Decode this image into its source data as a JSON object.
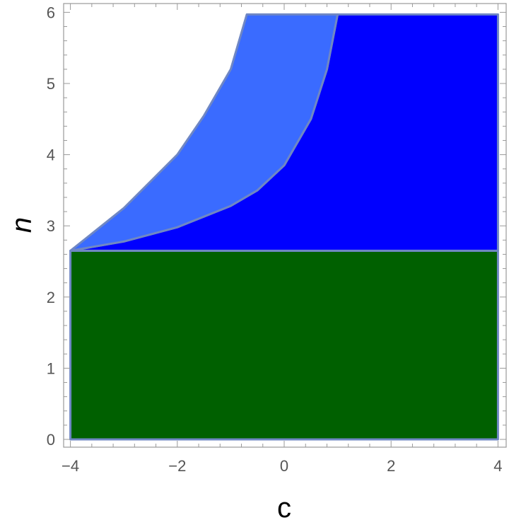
{
  "chart_data": {
    "type": "area",
    "xlabel": "c",
    "ylabel": "n",
    "xlim": [
      -4,
      4
    ],
    "ylim": [
      0,
      6
    ],
    "x_ticks": [
      "−4",
      "−2",
      "0",
      "2",
      "4"
    ],
    "y_ticks": [
      "0",
      "1",
      "2",
      "3",
      "4",
      "5",
      "6"
    ],
    "grid": false,
    "colors": {
      "green_region": "#006000",
      "blue_region": "#0000ff",
      "light_blue_region": "#3a6bff",
      "region_edge": "#6f87c4",
      "frame": "#999999"
    },
    "regions": [
      {
        "fill": "green",
        "boundary": [
          [
            -4,
            0
          ],
          [
            4,
            0
          ],
          [
            4,
            2.65
          ],
          [
            -4,
            2.65
          ]
        ]
      },
      {
        "fill": "blue",
        "boundary": [
          [
            -4,
            2.65
          ],
          [
            4,
            2.65
          ],
          [
            4,
            5.97
          ],
          [
            1.0,
            5.97
          ],
          [
            0.8,
            5.2
          ],
          [
            0.5,
            4.5
          ],
          [
            0.0,
            3.85
          ],
          [
            -0.5,
            3.5
          ],
          [
            -1.0,
            3.28
          ],
          [
            -2.0,
            2.98
          ],
          [
            -3.0,
            2.78
          ],
          [
            -4,
            2.65
          ]
        ]
      },
      {
        "fill": "light_blue",
        "boundary": [
          [
            -4,
            2.65
          ],
          [
            -3.0,
            2.78
          ],
          [
            -2.0,
            2.98
          ],
          [
            -1.0,
            3.28
          ],
          [
            -0.5,
            3.5
          ],
          [
            0.0,
            3.85
          ],
          [
            0.5,
            4.5
          ],
          [
            0.8,
            5.2
          ],
          [
            1.0,
            5.97
          ],
          [
            -0.7,
            5.97
          ],
          [
            -1.0,
            5.2
          ],
          [
            -1.5,
            4.55
          ],
          [
            -2.0,
            4.0
          ],
          [
            -3.0,
            3.25
          ],
          [
            -4,
            2.65
          ]
        ]
      }
    ]
  }
}
